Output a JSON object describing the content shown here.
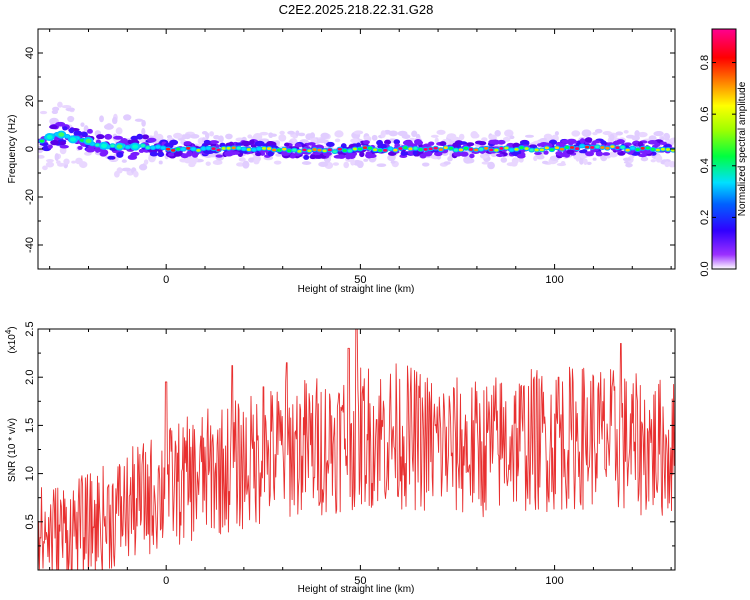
{
  "title": "C2E2.2025.218.22.31.G28",
  "chart_data": [
    {
      "type": "heatmap",
      "xlabel": "Height of straight line (km)",
      "ylabel": "Frequency (Hz)",
      "xlim": [
        -33,
        131
      ],
      "ylim": [
        -50,
        50
      ],
      "xticks": [
        0,
        50,
        100
      ],
      "yticks": [
        -40,
        -20,
        0,
        20,
        40
      ],
      "colorbar": {
        "label": "Normalized spectral amplitude",
        "ticks": [
          0.0,
          0.2,
          0.4,
          0.6,
          0.8
        ],
        "range": [
          0,
          0.93
        ],
        "colors": [
          "#ffffff",
          "#7f00ff",
          "#0000ff",
          "#00ffff",
          "#00ff00",
          "#ffff00",
          "#ff7f00",
          "#ff0000",
          "#ff0080"
        ]
      },
      "ridge": {
        "x": [
          -33,
          -30,
          -27,
          -24,
          -21,
          -18,
          -15,
          -10,
          -5,
          0,
          10,
          20,
          30,
          40,
          50,
          60,
          70,
          80,
          90,
          100,
          110,
          120,
          131
        ],
        "y": [
          3,
          5,
          6,
          4,
          4,
          2,
          1,
          1,
          1,
          0,
          0,
          0,
          0,
          -1,
          0,
          0,
          0,
          0,
          0,
          0,
          1,
          0,
          0
        ]
      }
    },
    {
      "type": "line",
      "xlabel": "Height of straight line (km)",
      "ylabel": "SNR (10 * v/v)",
      "y_multiplier": "(x10",
      "y_multiplier_exp": "4",
      "y_multiplier_close": ")",
      "xlim": [
        -33,
        131
      ],
      "ylim": [
        0,
        2.5
      ],
      "xticks": [
        0,
        50,
        100
      ],
      "yticks": [
        0.5,
        1.0,
        1.5,
        2.0,
        2.5
      ],
      "series": [
        {
          "color": "#e83030",
          "trend_x": [
            -33,
            -20,
            -10,
            0,
            10,
            20,
            30,
            40,
            50,
            60,
            70,
            80,
            90,
            100,
            110,
            120,
            131
          ],
          "trend_y": [
            0.35,
            0.45,
            0.65,
            0.85,
            1.0,
            1.1,
            1.25,
            1.3,
            1.4,
            1.4,
            1.3,
            1.25,
            1.35,
            1.35,
            1.4,
            1.3,
            1.25
          ],
          "peaks_x": [
            49,
            47,
            117,
            0,
            17,
            31,
            101,
            25
          ],
          "peaks_y": [
            2.5,
            2.3,
            2.35,
            1.95,
            2.12,
            2.15,
            2.0,
            1.9
          ]
        }
      ]
    }
  ]
}
